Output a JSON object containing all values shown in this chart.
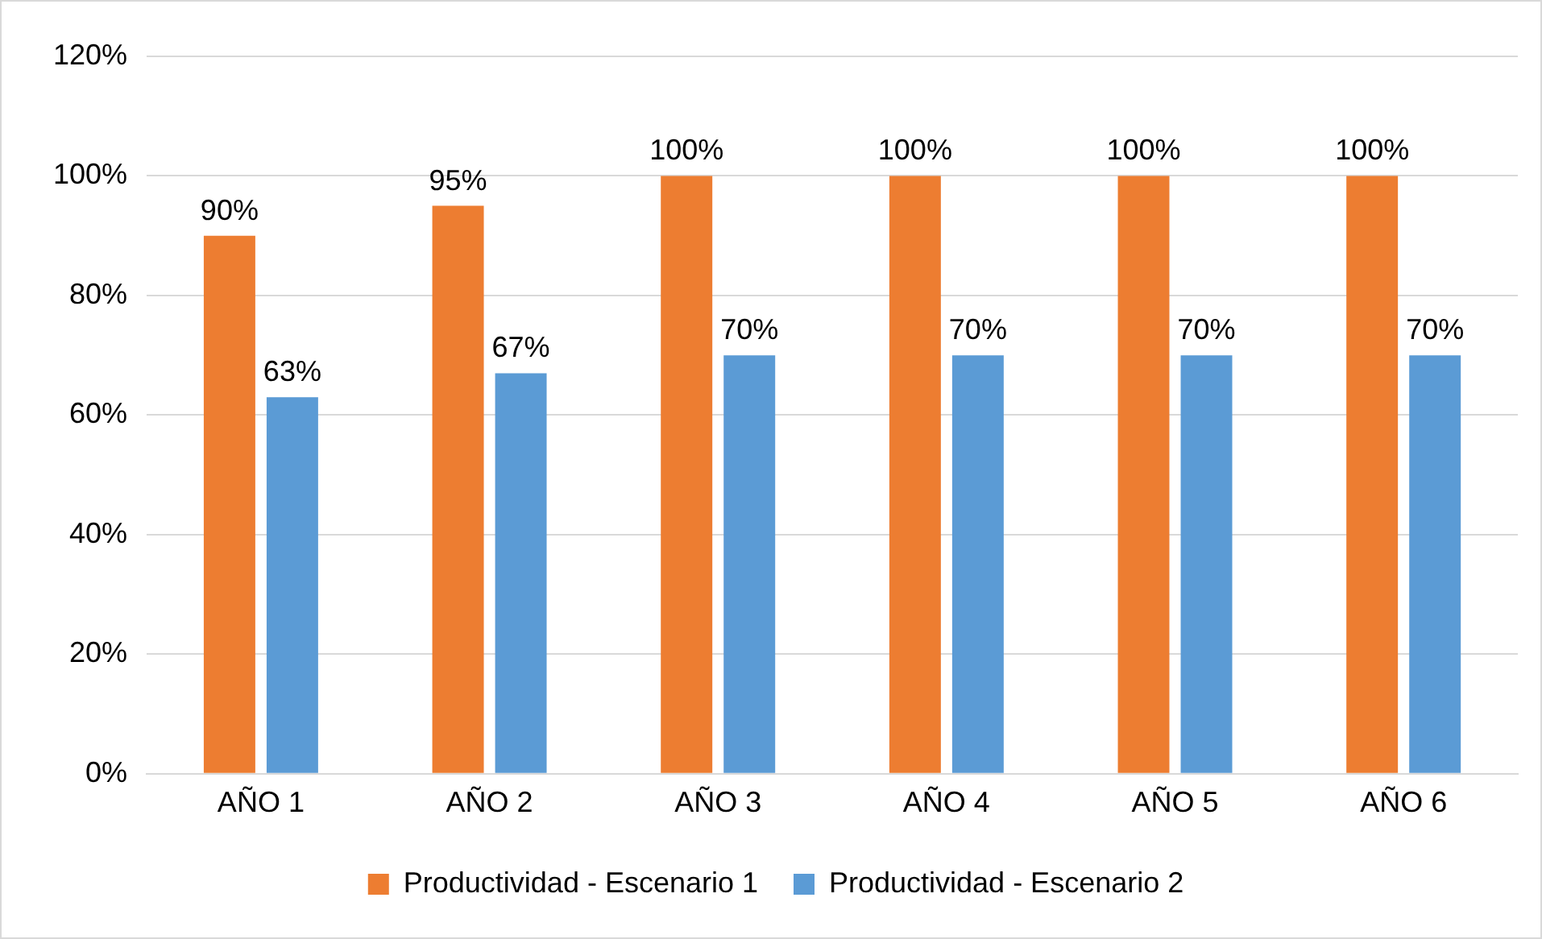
{
  "chart_data": {
    "type": "bar",
    "categories": [
      "AÑO 1",
      "AÑO 2",
      "AÑO 3",
      "AÑO 4",
      "AÑO 5",
      "AÑO 6"
    ],
    "series": [
      {
        "name": "Productividad - Escenario 1",
        "color": "#ed7d31",
        "values": [
          90,
          95,
          100,
          100,
          100,
          100
        ],
        "value_labels": [
          "90%",
          "95%",
          "100%",
          "100%",
          "100%",
          "100%"
        ]
      },
      {
        "name": "Productividad - Escenario 2",
        "color": "#5b9bd5",
        "values": [
          63,
          67,
          70,
          70,
          70,
          70
        ],
        "value_labels": [
          "63%",
          "67%",
          "70%",
          "70%",
          "70%",
          "70%"
        ]
      }
    ],
    "ylim": [
      0,
      120
    ],
    "yticks": [
      {
        "value": 0,
        "label": "0%"
      },
      {
        "value": 20,
        "label": "20%"
      },
      {
        "value": 40,
        "label": "40%"
      },
      {
        "value": 60,
        "label": "60%"
      },
      {
        "value": 80,
        "label": "80%"
      },
      {
        "value": 100,
        "label": "100%"
      },
      {
        "value": 120,
        "label": "120%"
      }
    ],
    "grid": "y",
    "legend": "bottom"
  }
}
